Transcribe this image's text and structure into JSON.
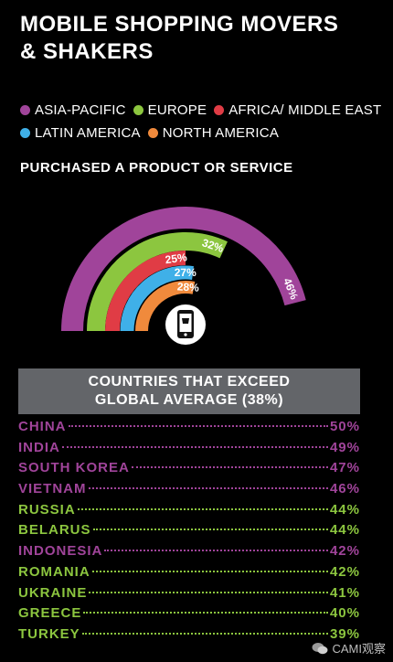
{
  "title_line1": "MOBILE SHOPPING MOVERS",
  "title_line2": "& SHAKERS",
  "legend": [
    {
      "label": "ASIA-PACIFIC",
      "color": "#a0449a"
    },
    {
      "label": "EUROPE",
      "color": "#8cc63f"
    },
    {
      "label": "AFRICA/ MIDDLE EAST",
      "color": "#e03c45"
    },
    {
      "label": "LATIN AMERICA",
      "color": "#3fb0e8"
    },
    {
      "label": "NORTH AMERICA",
      "color": "#f08a3c"
    }
  ],
  "subtitle": "PURCHASED A PRODUCT OR SERVICE",
  "chart_data": {
    "type": "radial-bar",
    "categories": [
      "ASIA-PACIFIC",
      "EUROPE",
      "AFRICA/ MIDDLE EAST",
      "LATIN AMERICA",
      "NORTH AMERICA"
    ],
    "values": [
      46,
      32,
      25,
      27,
      28
    ],
    "labels": [
      "46%",
      "32%",
      "25%",
      "27%",
      "28%"
    ],
    "colors": [
      "#a0449a",
      "#8cc63f",
      "#e03c45",
      "#3fb0e8",
      "#f08a3c"
    ]
  },
  "table": {
    "header_line1": "COUNTRIES THAT EXCEED",
    "header_line2": "GLOBAL AVERAGE (38%)",
    "rows": [
      {
        "country": "CHINA",
        "value": "50%",
        "color": "#a0449a"
      },
      {
        "country": "INDIA",
        "value": "49%",
        "color": "#a0449a"
      },
      {
        "country": "SOUTH KOREA",
        "value": "47%",
        "color": "#a0449a"
      },
      {
        "country": "VIETNAM",
        "value": "46%",
        "color": "#a0449a"
      },
      {
        "country": "RUSSIA",
        "value": "44%",
        "color": "#8cc63f"
      },
      {
        "country": "BELARUS",
        "value": "44%",
        "color": "#8cc63f"
      },
      {
        "country": "INDONESIA",
        "value": "42%",
        "color": "#a0449a"
      },
      {
        "country": "ROMANIA",
        "value": "42%",
        "color": "#8cc63f"
      },
      {
        "country": "UKRAINE",
        "value": "41%",
        "color": "#8cc63f"
      },
      {
        "country": "GREECE",
        "value": "40%",
        "color": "#8cc63f"
      },
      {
        "country": "TURKEY",
        "value": "39%",
        "color": "#8cc63f"
      }
    ]
  },
  "watermark": "CAMI观察"
}
